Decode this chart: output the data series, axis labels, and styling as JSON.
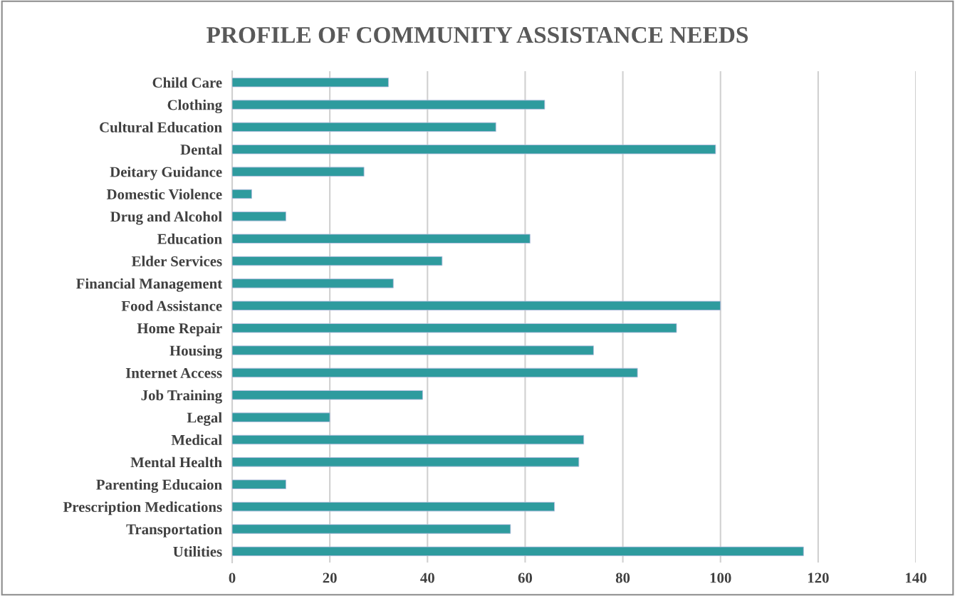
{
  "chart_data": {
    "type": "bar",
    "orientation": "horizontal",
    "title": "PROFILE OF COMMUNITY ASSISTANCE NEEDS",
    "categories": [
      "Child Care",
      "Clothing",
      "Cultural Education",
      "Dental",
      "Deitary Guidance",
      "Domestic Violence",
      "Drug and Alcohol",
      "Education",
      "Elder Services",
      "Financial Management",
      "Food Assistance",
      "Home Repair",
      "Housing",
      "Internet Access",
      "Job Training",
      "Legal",
      "Medical",
      "Mental Health",
      "Parenting Educaion",
      "Prescription Medications",
      "Transportation",
      "Utilities"
    ],
    "values": [
      32,
      64,
      54,
      99,
      27,
      4,
      11,
      61,
      43,
      33,
      100,
      91,
      74,
      83,
      39,
      20,
      72,
      71,
      11,
      66,
      57,
      117
    ],
    "color": "#2e9b9e",
    "xlim": [
      0,
      140
    ],
    "xticks": [
      0,
      20,
      40,
      60,
      80,
      100,
      120,
      140
    ],
    "grid": "x",
    "legend": false
  }
}
